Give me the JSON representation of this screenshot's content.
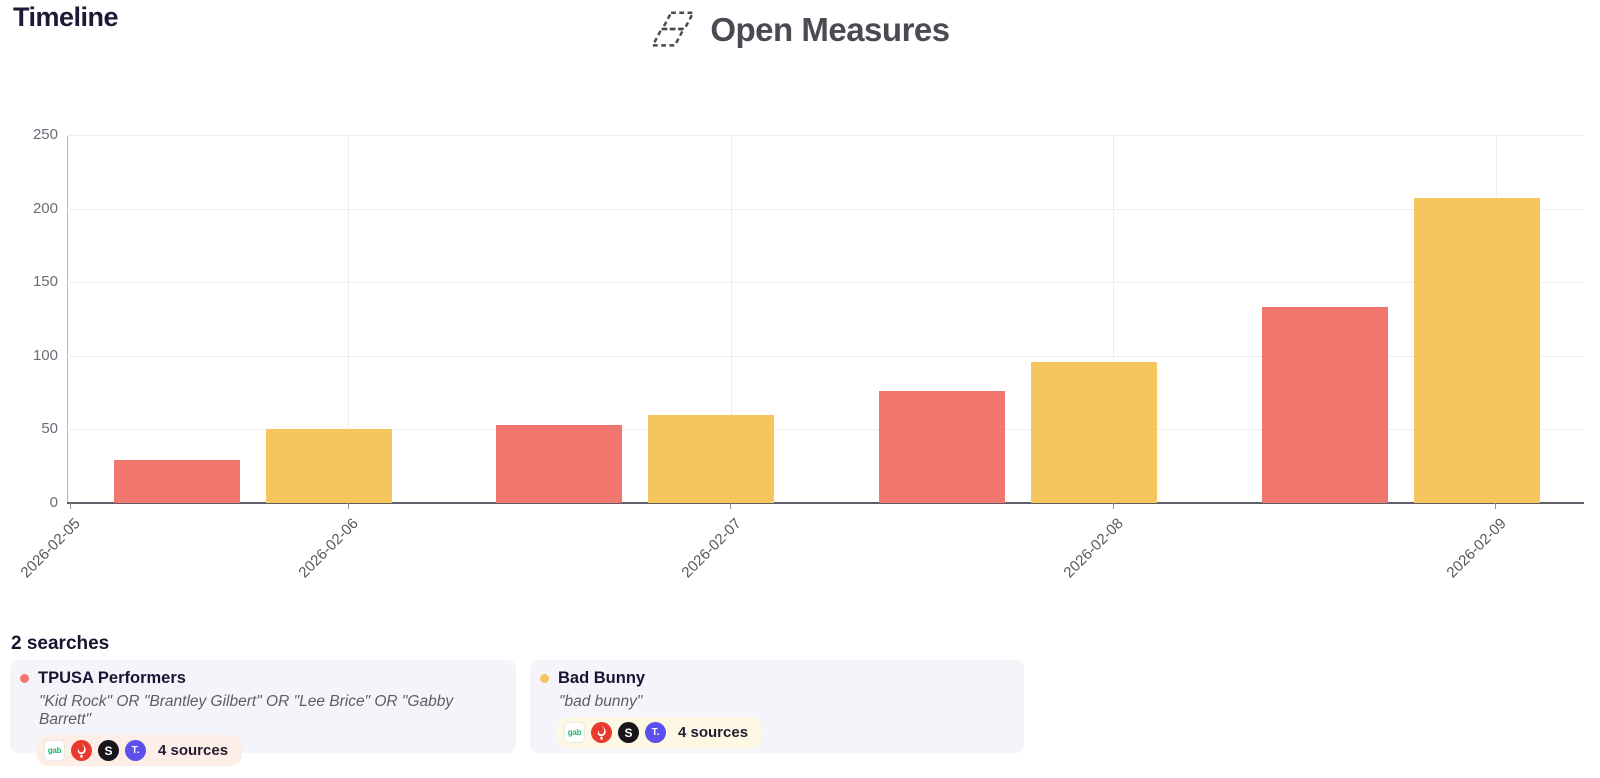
{
  "page": {
    "title": "Timeline"
  },
  "header": {
    "brand": "Open Measures"
  },
  "chart_data": {
    "type": "bar",
    "title": "Timeline",
    "x_tick_labels": [
      "2026-02-05",
      "2026-02-06",
      "2026-02-07",
      "2026-02-08",
      "2026-02-09"
    ],
    "y_ticks": [
      0,
      50,
      100,
      150,
      200,
      250
    ],
    "ylim": [
      0,
      250
    ],
    "grid": true,
    "legend": "none",
    "series": [
      {
        "name": "TPUSA Performers",
        "color": "#f1766d",
        "values": [
          29,
          53,
          76,
          133
        ]
      },
      {
        "name": "Bad Bunny",
        "color": "#f5c65d",
        "values": [
          50,
          60,
          96,
          207
        ]
      }
    ]
  },
  "searches": {
    "heading": "2 searches",
    "source_icon_styles": {
      "gab": {
        "shape": "square",
        "bg": "#ffffff",
        "fg": "#1fb96b",
        "glyph": "gab"
      },
      "gettr": {
        "shape": "circle",
        "bg": "#e93a2e",
        "fg": "#ffffff",
        "glyph": "torch"
      },
      "scored": {
        "shape": "circle",
        "bg": "#17161b",
        "fg": "#ffffff",
        "glyph": "S"
      },
      "truth-social": {
        "shape": "circle",
        "bg": "#5b50ee",
        "fg": "#ffffff",
        "glyph": "T."
      }
    },
    "cards": [
      {
        "title": "TPUSA Performers",
        "dot_color": "#f1766d",
        "query": "\"Kid Rock\" OR \"Brantley Gilbert\" OR \"Lee Brice\" OR \"Gabby Barrett\"",
        "pill_bg": "#fdefe7",
        "sources": [
          "gab",
          "gettr",
          "scored",
          "truth-social"
        ],
        "sources_label": "4 sources"
      },
      {
        "title": "Bad Bunny",
        "dot_color": "#f5c65d",
        "query": "\"bad bunny\"",
        "pill_bg": "#fcf8e4",
        "sources": [
          "gab",
          "gettr",
          "scored",
          "truth-social"
        ],
        "sources_label": "4 sources"
      }
    ]
  }
}
